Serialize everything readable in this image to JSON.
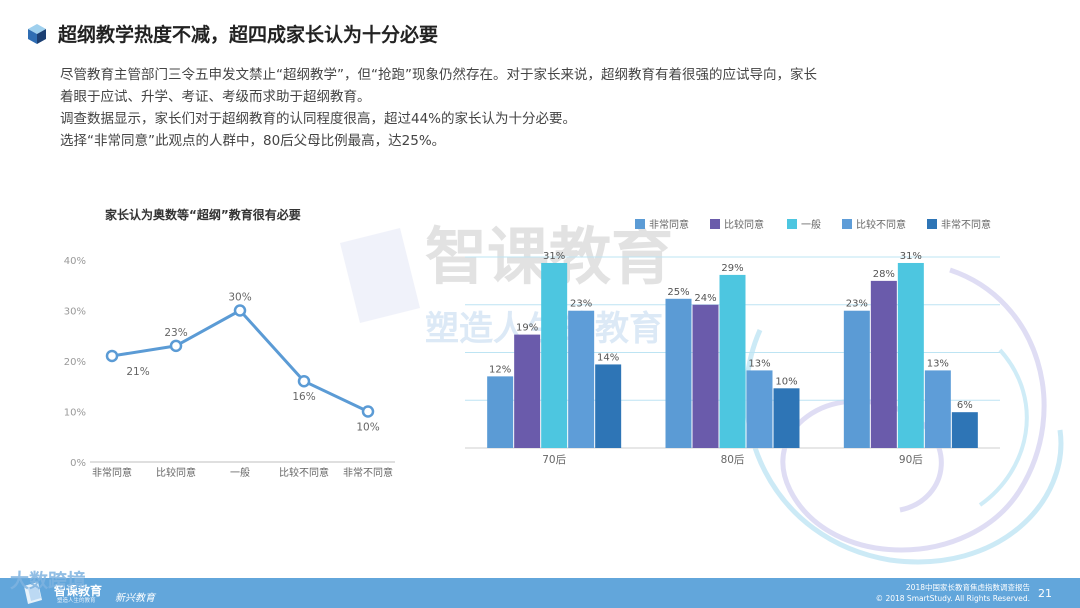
{
  "header": {
    "title": "超纲教学热度不减，超四成家长认为十分必要"
  },
  "intro": {
    "lines": [
      "尽管教育主管部门三令五申发文禁止“超纲教学”，但“抢跑”现象仍然存在。对于家长来说，超纲教育有着很强的应试导向，家长",
      "着眼于应试、升学、考证、考级而求助于超纲教育。",
      "调查数据显示，家长们对于超纲教育的认同程度很高，超过44%的家长认为十分必要。",
      "选择“非常同意”此观点的人群中，80后父母比例最高，达25%。"
    ]
  },
  "watermark": {
    "brand": "智课教育",
    "slogan": "塑造人生的教育"
  },
  "colors": {
    "line": "#5b9bd5",
    "series": [
      "#5b9bd5",
      "#6a5bab",
      "#4dc6e0",
      "#5e9dd8",
      "#2e75b6"
    ],
    "footer": "#62a6db"
  },
  "chart_data": [
    {
      "type": "line",
      "title": "家长认为奥数等“超纲”教育很有必要",
      "categories": [
        "非常同意",
        "比较同意",
        "一般",
        "比较不同意",
        "非常不同意"
      ],
      "values": [
        21,
        23,
        30,
        16,
        10
      ],
      "data_labels": [
        "21%",
        "23%",
        "30%",
        "16%",
        "10%"
      ],
      "ylim": [
        0,
        40
      ],
      "yticks": [
        "0%",
        "10%",
        "20%",
        "30%",
        "40%"
      ],
      "grid": false
    },
    {
      "type": "bar",
      "categories": [
        "70后",
        "80后",
        "90后"
      ],
      "series": [
        {
          "name": "非常同意",
          "values": [
            12,
            25,
            23
          ]
        },
        {
          "name": "比较同意",
          "values": [
            19,
            24,
            28
          ]
        },
        {
          "name": "一般",
          "values": [
            31,
            29,
            31
          ]
        },
        {
          "name": "比较不同意",
          "values": [
            23,
            13,
            13
          ]
        },
        {
          "name": "非常不同意",
          "values": [
            14,
            10,
            6
          ]
        }
      ],
      "ylim": [
        0,
        32
      ],
      "grid": true,
      "legend": "top"
    }
  ],
  "footer": {
    "brand": "智课教育",
    "slogan": "塑造人生的教育",
    "tagline": "新兴教育",
    "report": "2018中国家长教育焦虑指数调查报告",
    "copyright": "© 2018 SmartStudy. All Rights Reserved.",
    "page": "21",
    "overlay": "大数跨境"
  }
}
